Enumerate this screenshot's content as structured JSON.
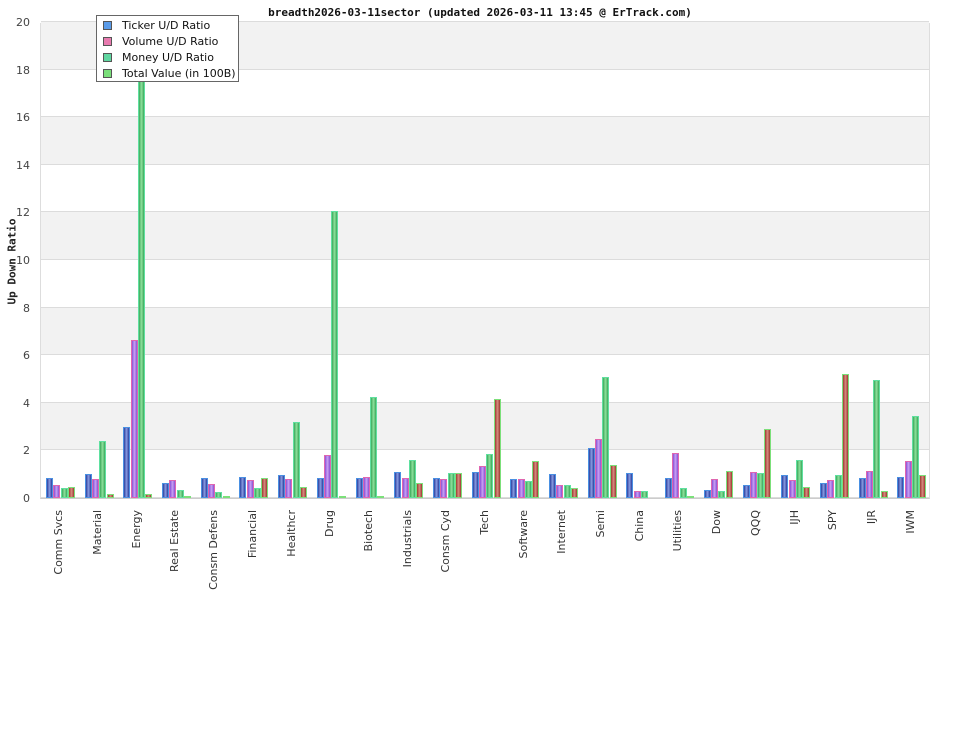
{
  "title": "breadth2026-03-11sector  (updated 2026-03-11 13:45 @ ErTrack.com)",
  "chart_data": {
    "type": "bar",
    "title": "breadth2026-03-11sector  (updated 2026-03-11 13:45 @ ErTrack.com)",
    "xlabel": "",
    "ylabel": "Up Down Ratio",
    "ylim": [
      0,
      20
    ],
    "yticks": [
      0,
      2,
      4,
      6,
      8,
      10,
      12,
      14,
      16,
      18,
      20
    ],
    "grid": true,
    "legend_position": "top-left",
    "categories": [
      "Comm Svcs",
      "Material",
      "Energy",
      "Real Estate",
      "Consm Defens",
      "Financial",
      "Healthcr",
      "Drug",
      "Biotech",
      "Industrials",
      "Consm Cyd",
      "Tech",
      "Software",
      "Internet",
      "Semi",
      "China",
      "Utilities",
      "Dow",
      "QQQ",
      "IJH",
      "SPY",
      "IJR",
      "IWM"
    ],
    "series": [
      {
        "name": "Ticker U/D Ratio",
        "color": "#4a90e2",
        "values": [
          0.85,
          1.0,
          3.0,
          0.65,
          0.85,
          0.9,
          0.95,
          0.85,
          0.85,
          1.1,
          0.85,
          1.1,
          0.8,
          1.0,
          2.1,
          1.05,
          0.85,
          0.35,
          0.55,
          0.95,
          0.65,
          0.85,
          0.9
        ]
      },
      {
        "name": "Volume U/D Ratio",
        "color": "#e066b0",
        "values": [
          0.55,
          0.8,
          6.65,
          0.75,
          0.6,
          0.75,
          0.8,
          1.8,
          0.9,
          0.85,
          0.8,
          1.35,
          0.8,
          0.55,
          2.5,
          0.3,
          1.9,
          0.8,
          1.1,
          0.75,
          0.75,
          1.15,
          1.55
        ]
      },
      {
        "name": "Money U/D Ratio",
        "color": "#5fe0a0",
        "values": [
          0.4,
          2.4,
          17.6,
          0.35,
          0.25,
          0.4,
          3.2,
          12.05,
          4.25,
          1.6,
          1.05,
          1.85,
          0.7,
          0.55,
          5.1,
          0.3,
          0.4,
          0.3,
          1.05,
          1.6,
          0.95,
          4.95,
          3.45
        ]
      },
      {
        "name": "Total Value (in 100B)",
        "color": "#7ce07a",
        "values": [
          0.45,
          0.15,
          0.15,
          0.1,
          0.1,
          0.85,
          0.45,
          0.1,
          0.05,
          0.65,
          1.05,
          4.15,
          1.55,
          0.4,
          1.4,
          0.0,
          0.05,
          1.15,
          2.9,
          0.45,
          5.2,
          0.3,
          0.95
        ]
      }
    ]
  },
  "legend": {
    "items": [
      {
        "label": "Ticker U/D Ratio",
        "color": "#5a9be8"
      },
      {
        "label": "Volume U/D Ratio",
        "color": "#e87aaf"
      },
      {
        "label": "Money U/D Ratio",
        "color": "#5fd6a0"
      },
      {
        "label": "Total Value (in 100B)",
        "color": "#7adf7a"
      }
    ]
  }
}
